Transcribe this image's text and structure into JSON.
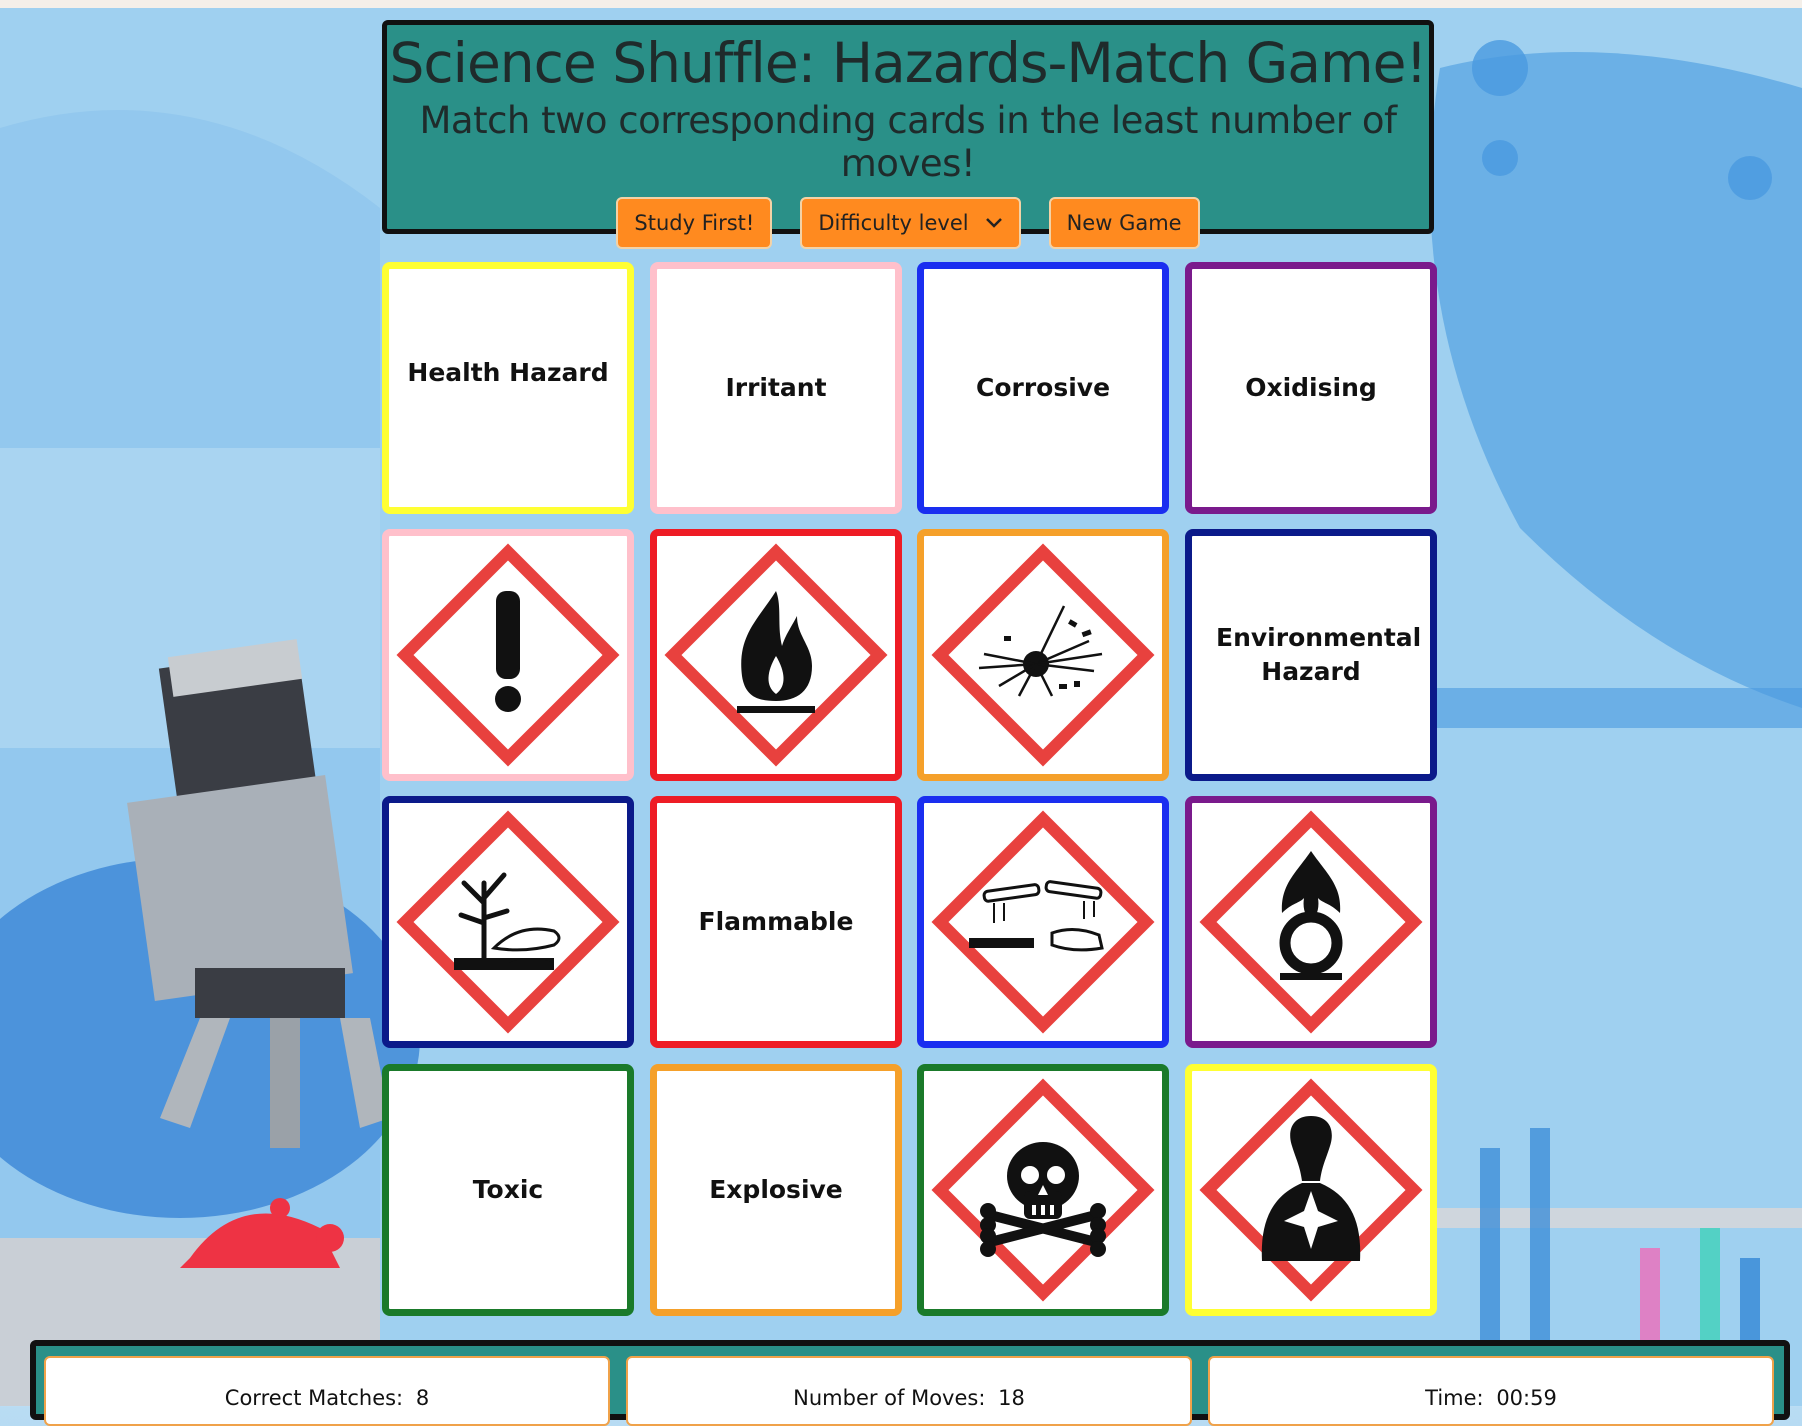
{
  "header": {
    "title": "Science Shuffle: Hazards-Match Game!",
    "subtitle": "Match two corresponding cards in the least number of moves!",
    "buttons": {
      "study": "Study First!",
      "difficulty": "Difficulty level",
      "new_game": "New Game"
    }
  },
  "cards": [
    {
      "type": "text",
      "label": "Health Hazard",
      "color": "#ffff33"
    },
    {
      "type": "text",
      "label": "Irritant",
      "color": "#ffc0cb"
    },
    {
      "type": "text",
      "label": "Corrosive",
      "color": "#1a2ef0"
    },
    {
      "type": "text",
      "label": "Oxidising",
      "color": "#7a1a8c"
    },
    {
      "type": "icon",
      "icon": "exclamation-icon",
      "color": "#ffc0cb"
    },
    {
      "type": "icon",
      "icon": "flame-icon",
      "color": "#ee1c25"
    },
    {
      "type": "icon",
      "icon": "explosion-icon",
      "color": "#f5a02a"
    },
    {
      "type": "text",
      "label": "Environmental Hazard",
      "color": "#0b1a8a"
    },
    {
      "type": "icon",
      "icon": "environment-icon",
      "color": "#0b1a8a"
    },
    {
      "type": "text",
      "label": "Flammable",
      "color": "#ee1c25"
    },
    {
      "type": "icon",
      "icon": "corrosion-icon",
      "color": "#1a2ef0"
    },
    {
      "type": "icon",
      "icon": "flame-over-circle-icon",
      "color": "#7a1a8c"
    },
    {
      "type": "text",
      "label": "Toxic",
      "color": "#1a7a2a"
    },
    {
      "type": "text",
      "label": "Explosive",
      "color": "#f5a02a"
    },
    {
      "type": "icon",
      "icon": "skull-crossbones-icon",
      "color": "#1a7a2a"
    },
    {
      "type": "icon",
      "icon": "health-hazard-icon",
      "color": "#ffff33"
    }
  ],
  "stats": {
    "matches_label": "Correct Matches:",
    "matches_value": "8",
    "moves_label": "Number of Moves:",
    "moves_value": "18",
    "time_label": "Time:",
    "time_value": "00:59"
  },
  "colors": {
    "header_bg": "#2a9088",
    "button_bg": "#ff8a1f",
    "diamond": "#e8413e"
  }
}
